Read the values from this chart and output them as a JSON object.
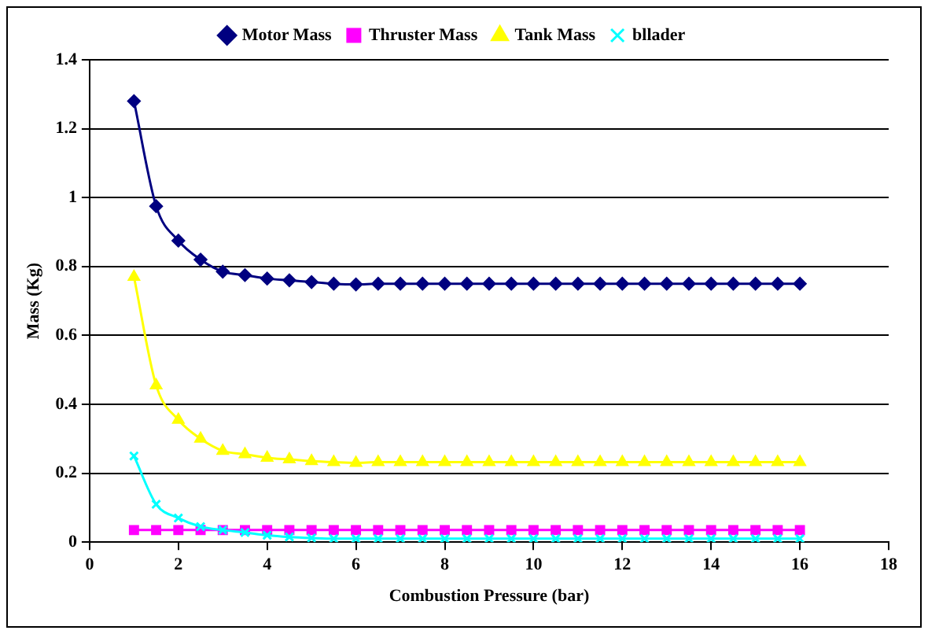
{
  "chart_data": {
    "type": "line",
    "xlabel": "Combustion Pressure (bar)",
    "ylabel": "Mass (Kg)",
    "x": [
      1,
      1.5,
      2,
      2.5,
      3,
      3.5,
      4,
      4.5,
      5,
      5.5,
      6,
      6.5,
      7,
      7.5,
      8,
      8.5,
      9,
      9.5,
      10,
      10.5,
      11,
      11.5,
      12,
      12.5,
      13,
      13.5,
      14,
      14.5,
      15,
      15.5,
      16
    ],
    "xlim": [
      0,
      18
    ],
    "xticks": [
      0,
      2,
      4,
      6,
      8,
      10,
      12,
      14,
      16,
      18
    ],
    "ylim": [
      0,
      1.4
    ],
    "yticks": [
      0,
      0.2,
      0.4,
      0.6,
      0.8,
      1,
      1.2,
      1.4
    ],
    "grid": "y",
    "legend": "top",
    "series": [
      {
        "name": "Motor Mass",
        "color": "#000080",
        "marker": "diamond",
        "values": [
          1.28,
          0.975,
          0.875,
          0.82,
          0.785,
          0.775,
          0.765,
          0.76,
          0.755,
          0.75,
          0.748,
          0.75,
          0.75,
          0.75,
          0.75,
          0.75,
          0.75,
          0.75,
          0.75,
          0.75,
          0.75,
          0.75,
          0.75,
          0.75,
          0.75,
          0.75,
          0.75,
          0.75,
          0.75,
          0.75,
          0.75
        ]
      },
      {
        "name": "Thruster Mass",
        "color": "#ff00ff",
        "marker": "square",
        "values": [
          0.035,
          0.035,
          0.035,
          0.035,
          0.035,
          0.035,
          0.035,
          0.035,
          0.035,
          0.035,
          0.035,
          0.035,
          0.035,
          0.035,
          0.035,
          0.035,
          0.035,
          0.035,
          0.035,
          0.035,
          0.035,
          0.035,
          0.035,
          0.035,
          0.035,
          0.035,
          0.035,
          0.035,
          0.035,
          0.035,
          0.035
        ]
      },
      {
        "name": "Tank Mass",
        "color": "#ffff00",
        "marker": "triangle",
        "values": [
          0.77,
          0.455,
          0.355,
          0.3,
          0.265,
          0.255,
          0.245,
          0.24,
          0.235,
          0.232,
          0.23,
          0.232,
          0.232,
          0.232,
          0.232,
          0.232,
          0.232,
          0.232,
          0.232,
          0.232,
          0.232,
          0.232,
          0.232,
          0.232,
          0.232,
          0.232,
          0.232,
          0.232,
          0.232,
          0.232,
          0.232
        ]
      },
      {
        "name": "bllader",
        "color": "#00ffff",
        "marker": "cross",
        "values": [
          0.25,
          0.11,
          0.07,
          0.045,
          0.035,
          0.028,
          0.02,
          0.015,
          0.012,
          0.01,
          0.01,
          0.01,
          0.01,
          0.01,
          0.01,
          0.01,
          0.01,
          0.01,
          0.01,
          0.01,
          0.01,
          0.01,
          0.01,
          0.01,
          0.01,
          0.01,
          0.01,
          0.01,
          0.01,
          0.01,
          0.01
        ]
      }
    ]
  }
}
